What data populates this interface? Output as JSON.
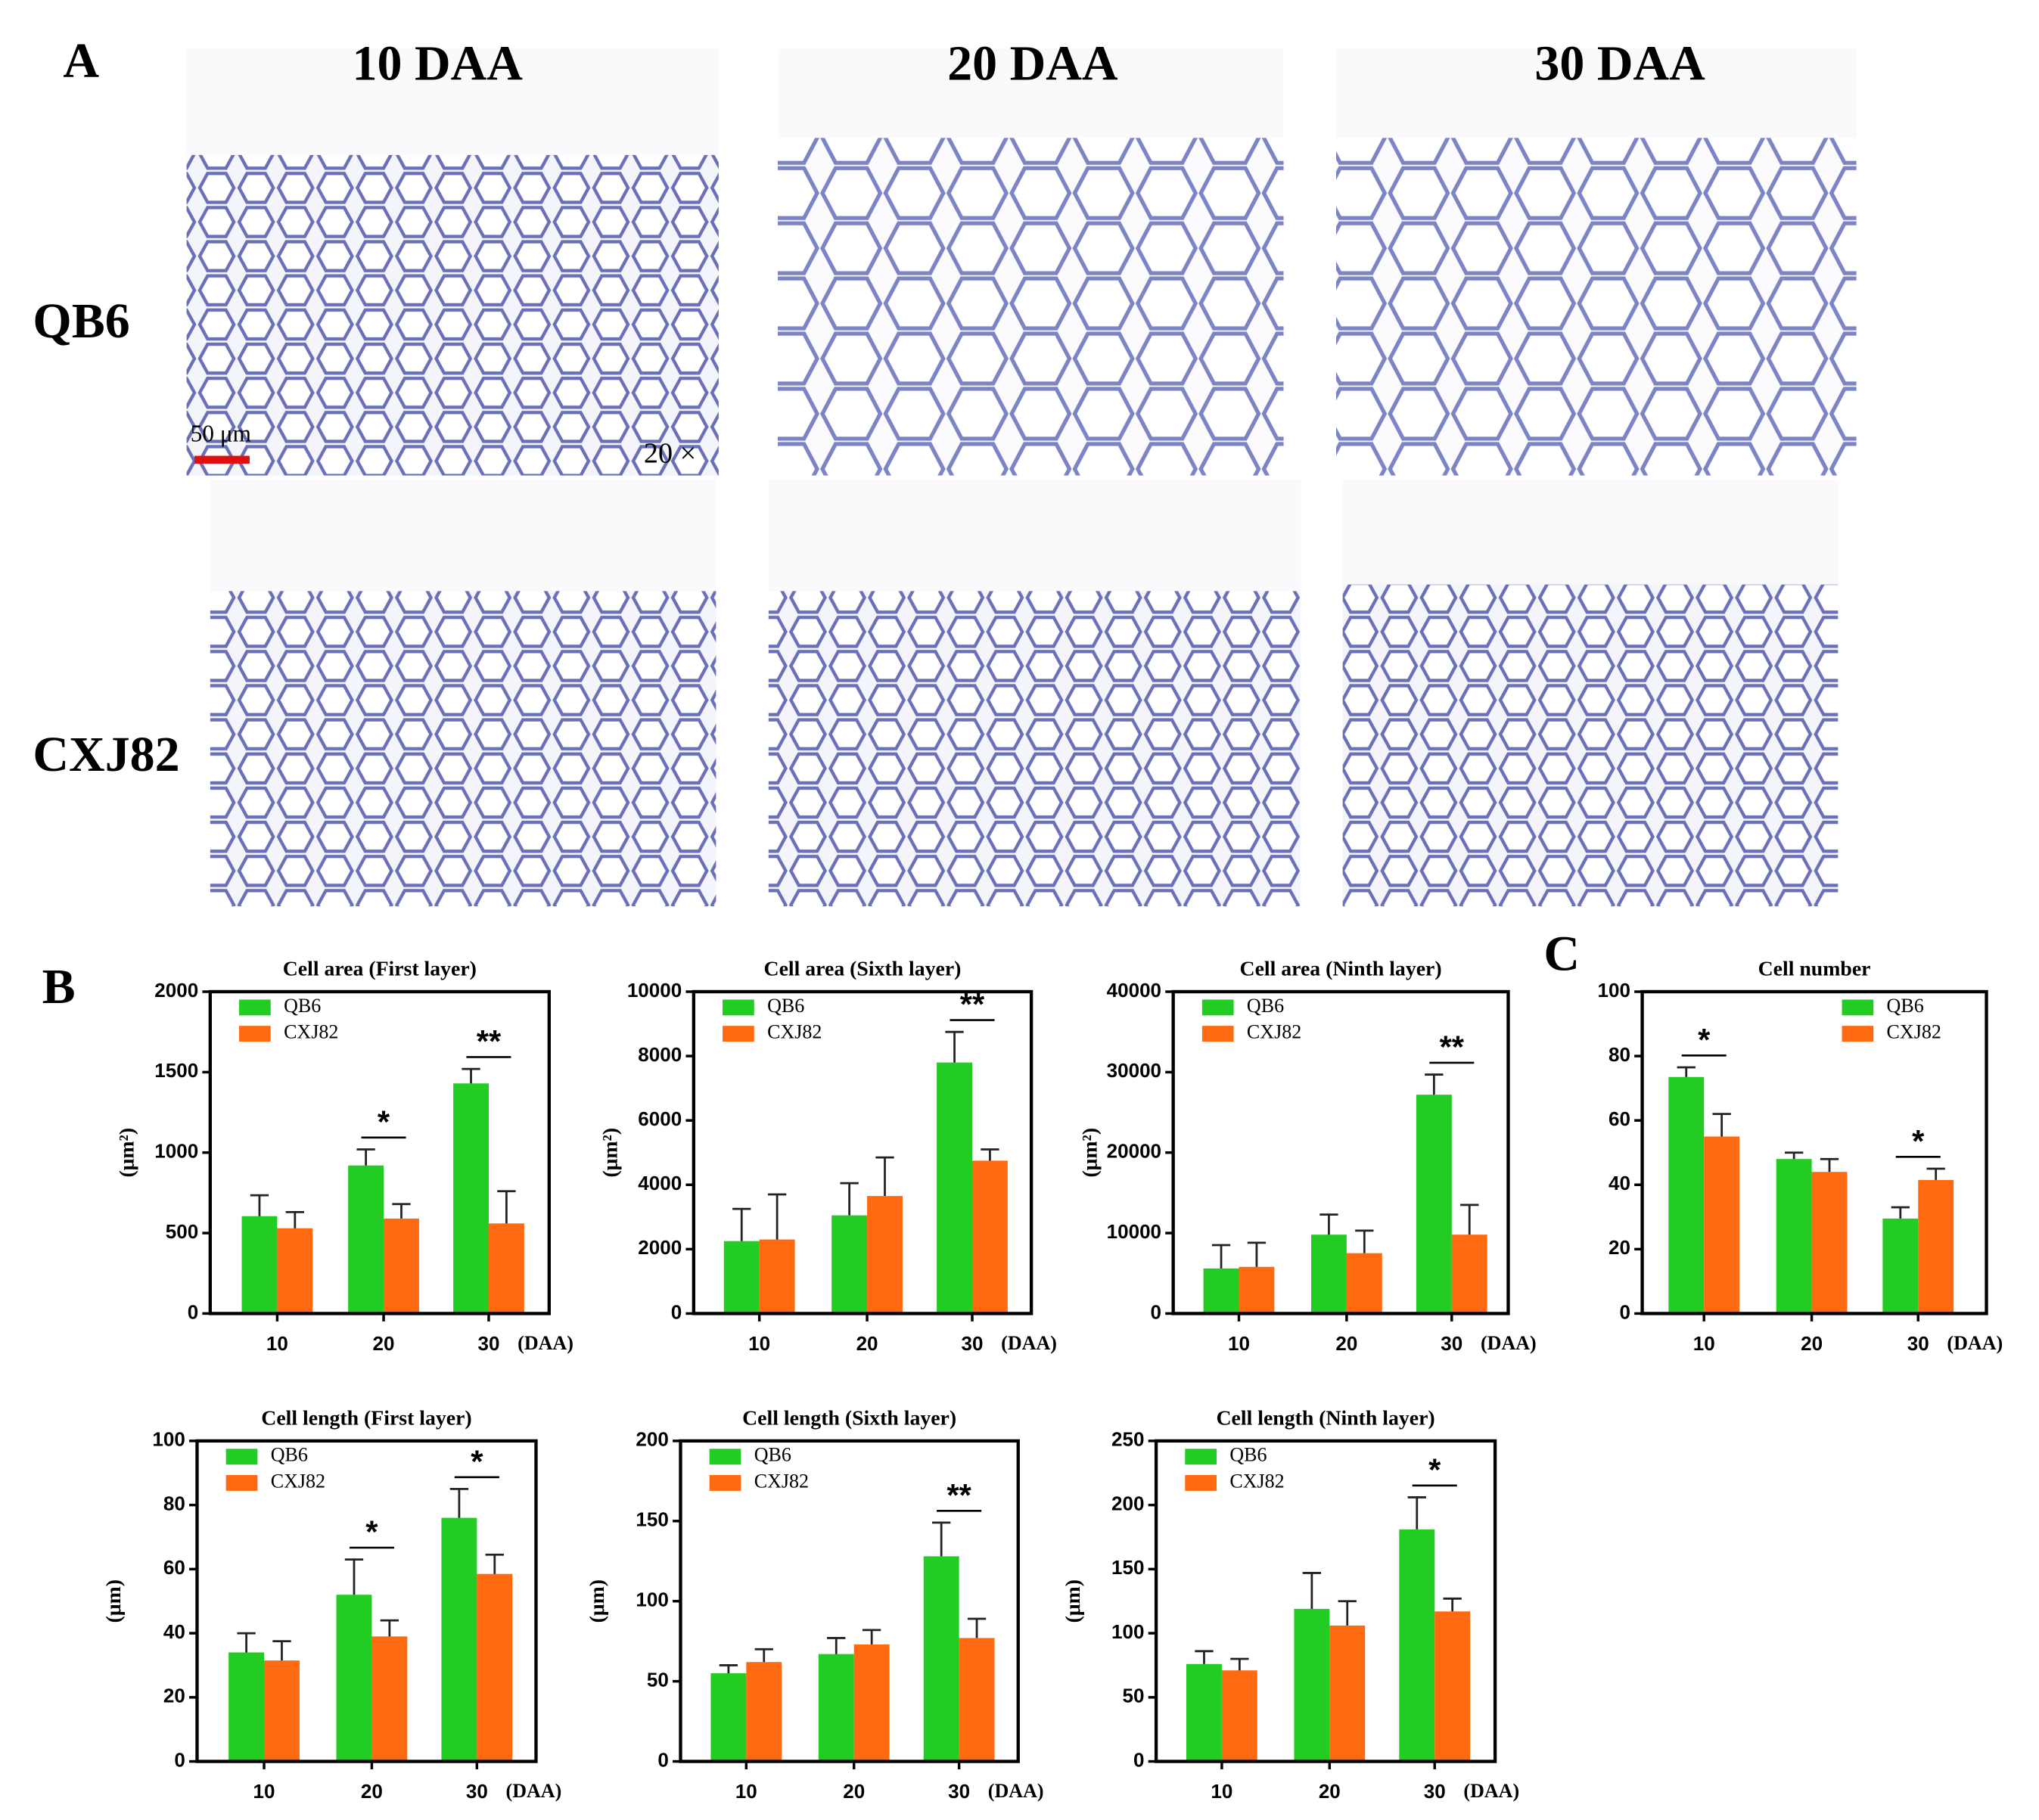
{
  "panels": {
    "a": "A",
    "b": "B",
    "c": "C"
  },
  "micrographs": {
    "columns": [
      "10 DAA",
      "20 DAA",
      "30 DAA"
    ],
    "rows": [
      "QB6",
      "CXJ82"
    ],
    "scale_bar": "50 μm",
    "magnification": "20 ×"
  },
  "chart_data": [
    {
      "type": "bar",
      "title": "Cell area (First layer)",
      "ylabel": "(μm²)",
      "xlabel": "(DAA)",
      "categories": [
        "10",
        "20",
        "30"
      ],
      "series": [
        {
          "name": "QB6",
          "color": "#22cc22",
          "values": [
            605,
            920,
            1430
          ],
          "errors": [
            130,
            100,
            90
          ]
        },
        {
          "name": "CXJ82",
          "color": "#ff6a10",
          "values": [
            530,
            590,
            560
          ],
          "errors": [
            100,
            90,
            200
          ]
        }
      ],
      "significance": [
        null,
        "*",
        "**"
      ],
      "ylim": [
        0,
        2000
      ],
      "yticks": [
        0,
        500,
        1000,
        1500,
        2000
      ]
    },
    {
      "type": "bar",
      "title": "Cell area (Sixth layer)",
      "ylabel": "(μm²)",
      "xlabel": "(DAA)",
      "categories": [
        "10",
        "20",
        "30"
      ],
      "series": [
        {
          "name": "QB6",
          "color": "#22cc22",
          "values": [
            2250,
            3050,
            7800
          ],
          "errors": [
            1000,
            1000,
            950
          ]
        },
        {
          "name": "CXJ82",
          "color": "#ff6a10",
          "values": [
            2300,
            3650,
            4750
          ],
          "errors": [
            1400,
            1200,
            350
          ]
        }
      ],
      "significance": [
        null,
        null,
        "**"
      ],
      "ylim": [
        0,
        10000
      ],
      "yticks": [
        0,
        2000,
        4000,
        6000,
        8000,
        10000
      ]
    },
    {
      "type": "bar",
      "title": "Cell area (Ninth layer)",
      "ylabel": "(μm²)",
      "xlabel": "(DAA)",
      "categories": [
        "10",
        "20",
        "30"
      ],
      "series": [
        {
          "name": "QB6",
          "color": "#22cc22",
          "values": [
            5600,
            9800,
            27200
          ],
          "errors": [
            2900,
            2500,
            2500
          ]
        },
        {
          "name": "CXJ82",
          "color": "#ff6a10",
          "values": [
            5800,
            7500,
            9800
          ],
          "errors": [
            3000,
            2800,
            3700
          ]
        }
      ],
      "significance": [
        null,
        null,
        "**"
      ],
      "ylim": [
        0,
        40000
      ],
      "yticks": [
        0,
        10000,
        20000,
        30000,
        40000
      ]
    },
    {
      "type": "bar",
      "title": "Cell number",
      "xlabel": "(DAA)",
      "categories": [
        "10",
        "20",
        "30"
      ],
      "series": [
        {
          "name": "QB6",
          "color": "#22cc22",
          "values": [
            73.5,
            48,
            29.5
          ],
          "errors": [
            3,
            2,
            3.5
          ]
        },
        {
          "name": "CXJ82",
          "color": "#ff6a10",
          "values": [
            55,
            44,
            41.5
          ],
          "errors": [
            7,
            4,
            3.5
          ]
        }
      ],
      "significance": [
        "*",
        null,
        "*"
      ],
      "ylim": [
        0,
        100
      ],
      "yticks": [
        0,
        20,
        40,
        60,
        80,
        100
      ],
      "legend": "upper right"
    },
    {
      "type": "bar",
      "title": "Cell length (First layer)",
      "ylabel": "(μm)",
      "xlabel": "(DAA)",
      "categories": [
        "10",
        "20",
        "30"
      ],
      "series": [
        {
          "name": "QB6",
          "color": "#22cc22",
          "values": [
            34,
            52,
            76
          ],
          "errors": [
            6,
            11,
            9
          ]
        },
        {
          "name": "CXJ82",
          "color": "#ff6a10",
          "values": [
            31.5,
            39,
            58.5
          ],
          "errors": [
            6,
            5,
            6
          ]
        }
      ],
      "significance": [
        null,
        "*",
        "*"
      ],
      "ylim": [
        0,
        100
      ],
      "yticks": [
        0,
        20,
        40,
        60,
        80,
        100
      ]
    },
    {
      "type": "bar",
      "title": "Cell length (Sixth layer)",
      "ylabel": "(μm)",
      "xlabel": "(DAA)",
      "categories": [
        "10",
        "20",
        "30"
      ],
      "series": [
        {
          "name": "QB6",
          "color": "#22cc22",
          "values": [
            55,
            67,
            128
          ],
          "errors": [
            5,
            10,
            21
          ]
        },
        {
          "name": "CXJ82",
          "color": "#ff6a10",
          "values": [
            62,
            73,
            77
          ],
          "errors": [
            8,
            9,
            12
          ]
        }
      ],
      "significance": [
        null,
        null,
        "**"
      ],
      "ylim": [
        0,
        200
      ],
      "yticks": [
        0,
        50,
        100,
        150,
        200
      ]
    },
    {
      "type": "bar",
      "title": "Cell length (Ninth layer)",
      "ylabel": "(μm)",
      "xlabel": "(DAA)",
      "categories": [
        "10",
        "20",
        "30"
      ],
      "series": [
        {
          "name": "QB6",
          "color": "#22cc22",
          "values": [
            76,
            119,
            181
          ],
          "errors": [
            10,
            28,
            25
          ]
        },
        {
          "name": "CXJ82",
          "color": "#ff6a10",
          "values": [
            71,
            106,
            117
          ],
          "errors": [
            9,
            19,
            10
          ]
        }
      ],
      "significance": [
        null,
        null,
        "*"
      ],
      "ylim": [
        0,
        250
      ],
      "yticks": [
        0,
        50,
        100,
        150,
        200,
        250
      ]
    }
  ]
}
